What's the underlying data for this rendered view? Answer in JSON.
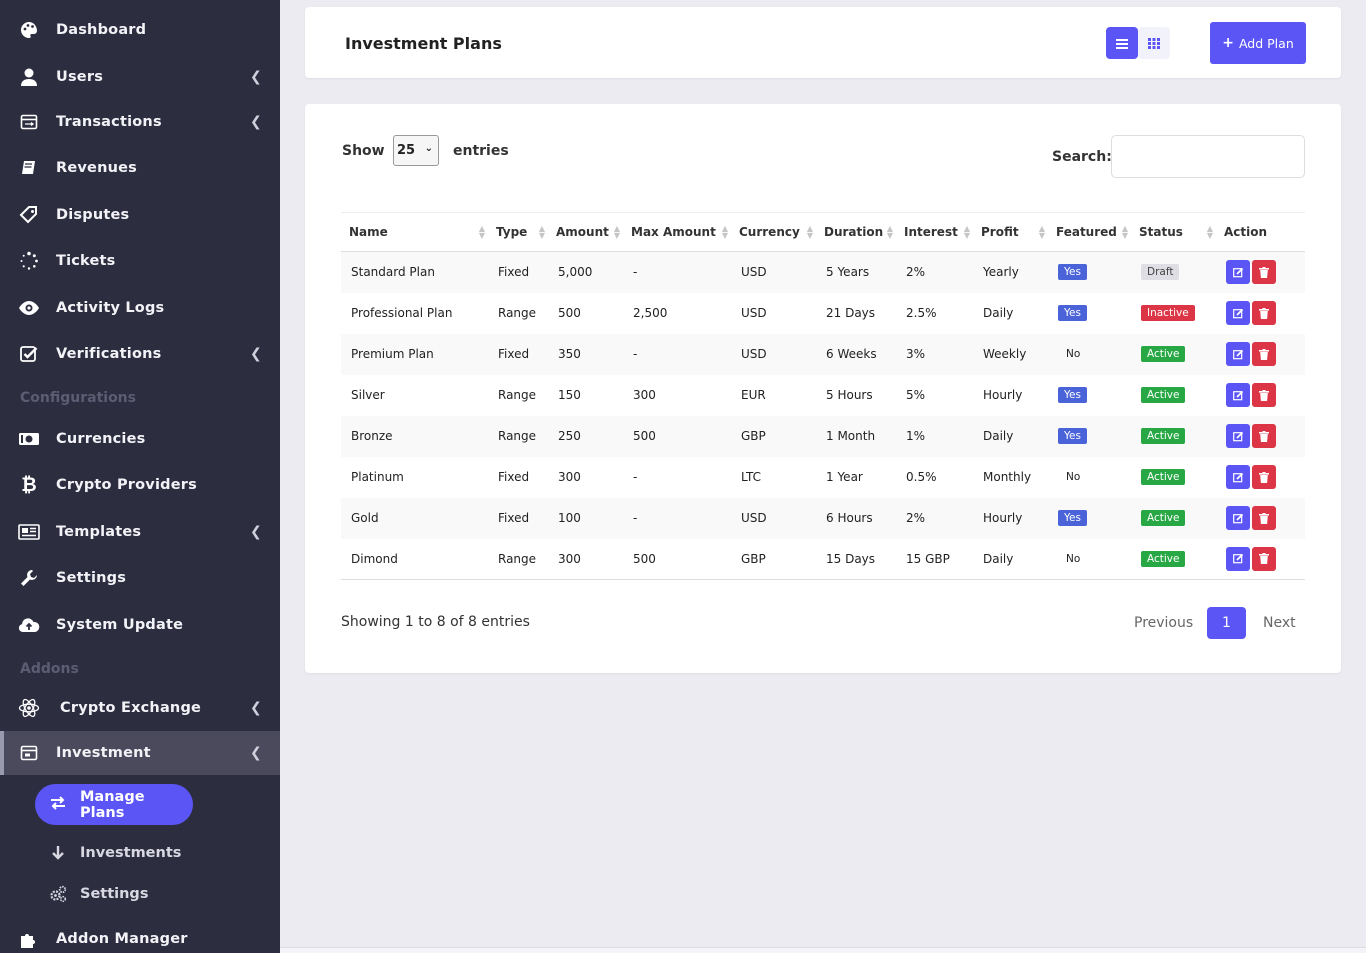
{
  "sidebar": {
    "items": [
      {
        "label": "Dashboard"
      },
      {
        "label": "Users"
      },
      {
        "label": "Transactions"
      },
      {
        "label": "Revenues"
      },
      {
        "label": "Disputes"
      },
      {
        "label": "Tickets"
      },
      {
        "label": "Activity Logs"
      },
      {
        "label": "Verifications"
      },
      {
        "label": "Currencies"
      },
      {
        "label": "Crypto Providers"
      },
      {
        "label": "Templates"
      },
      {
        "label": "Settings"
      },
      {
        "label": "System Update"
      },
      {
        "label": "Crypto Exchange"
      },
      {
        "label": "Investment"
      },
      {
        "label": "Addon Manager"
      }
    ],
    "sections": {
      "configurations": "Configurations",
      "addons": "Addons"
    },
    "submenu": {
      "manage_plans": "Manage Plans",
      "investments": "Investments",
      "settings": "Settings"
    }
  },
  "header": {
    "title": "Investment Plans",
    "add_button": "Add Plan"
  },
  "controls": {
    "show": "Show",
    "entries_value": "25",
    "entries": "entries",
    "search_label": "Search:",
    "search_value": ""
  },
  "table": {
    "columns": [
      "Name",
      "Type",
      "Amount",
      "Max Amount",
      "Currency",
      "Duration",
      "Interest",
      "Profit",
      "Featured",
      "Status",
      "Action"
    ],
    "rows": [
      {
        "name": "Standard Plan",
        "type": "Fixed",
        "amount": "5,000",
        "max": "-",
        "currency": "USD",
        "duration": "5 Years",
        "interest": "2%",
        "profit": "Yearly",
        "featured": "Yes",
        "status": "Draft"
      },
      {
        "name": "Professional Plan",
        "type": "Range",
        "amount": "500",
        "max": "2,500",
        "currency": "USD",
        "duration": "21 Days",
        "interest": "2.5%",
        "profit": "Daily",
        "featured": "Yes",
        "status": "Inactive"
      },
      {
        "name": "Premium Plan",
        "type": "Fixed",
        "amount": "350",
        "max": "-",
        "currency": "USD",
        "duration": "6 Weeks",
        "interest": "3%",
        "profit": "Weekly",
        "featured": "No",
        "status": "Active"
      },
      {
        "name": "Silver",
        "type": "Range",
        "amount": "150",
        "max": "300",
        "currency": "EUR",
        "duration": "5 Hours",
        "interest": "5%",
        "profit": "Hourly",
        "featured": "Yes",
        "status": "Active"
      },
      {
        "name": "Bronze",
        "type": "Range",
        "amount": "250",
        "max": "500",
        "currency": "GBP",
        "duration": "1 Month",
        "interest": "1%",
        "profit": "Daily",
        "featured": "Yes",
        "status": "Active"
      },
      {
        "name": "Platinum",
        "type": "Fixed",
        "amount": "300",
        "max": "-",
        "currency": "LTC",
        "duration": "1 Year",
        "interest": "0.5%",
        "profit": "Monthly",
        "featured": "No",
        "status": "Active"
      },
      {
        "name": "Gold",
        "type": "Fixed",
        "amount": "100",
        "max": "-",
        "currency": "USD",
        "duration": "6 Hours",
        "interest": "2%",
        "profit": "Hourly",
        "featured": "Yes",
        "status": "Active"
      },
      {
        "name": "Dimond",
        "type": "Range",
        "amount": "300",
        "max": "500",
        "currency": "GBP",
        "duration": "15 Days",
        "interest": "15 GBP",
        "profit": "Daily",
        "featured": "No",
        "status": "Active"
      }
    ]
  },
  "footer": {
    "info": "Showing 1 to 8 of 8 entries",
    "previous": "Previous",
    "current_page": "1",
    "next": "Next"
  },
  "colors": {
    "sidebar_bg": "#2d2d40",
    "accent": "#5b55f5",
    "active": "#28a745",
    "inactive": "#dc3545",
    "featured": "#4a63d9"
  }
}
